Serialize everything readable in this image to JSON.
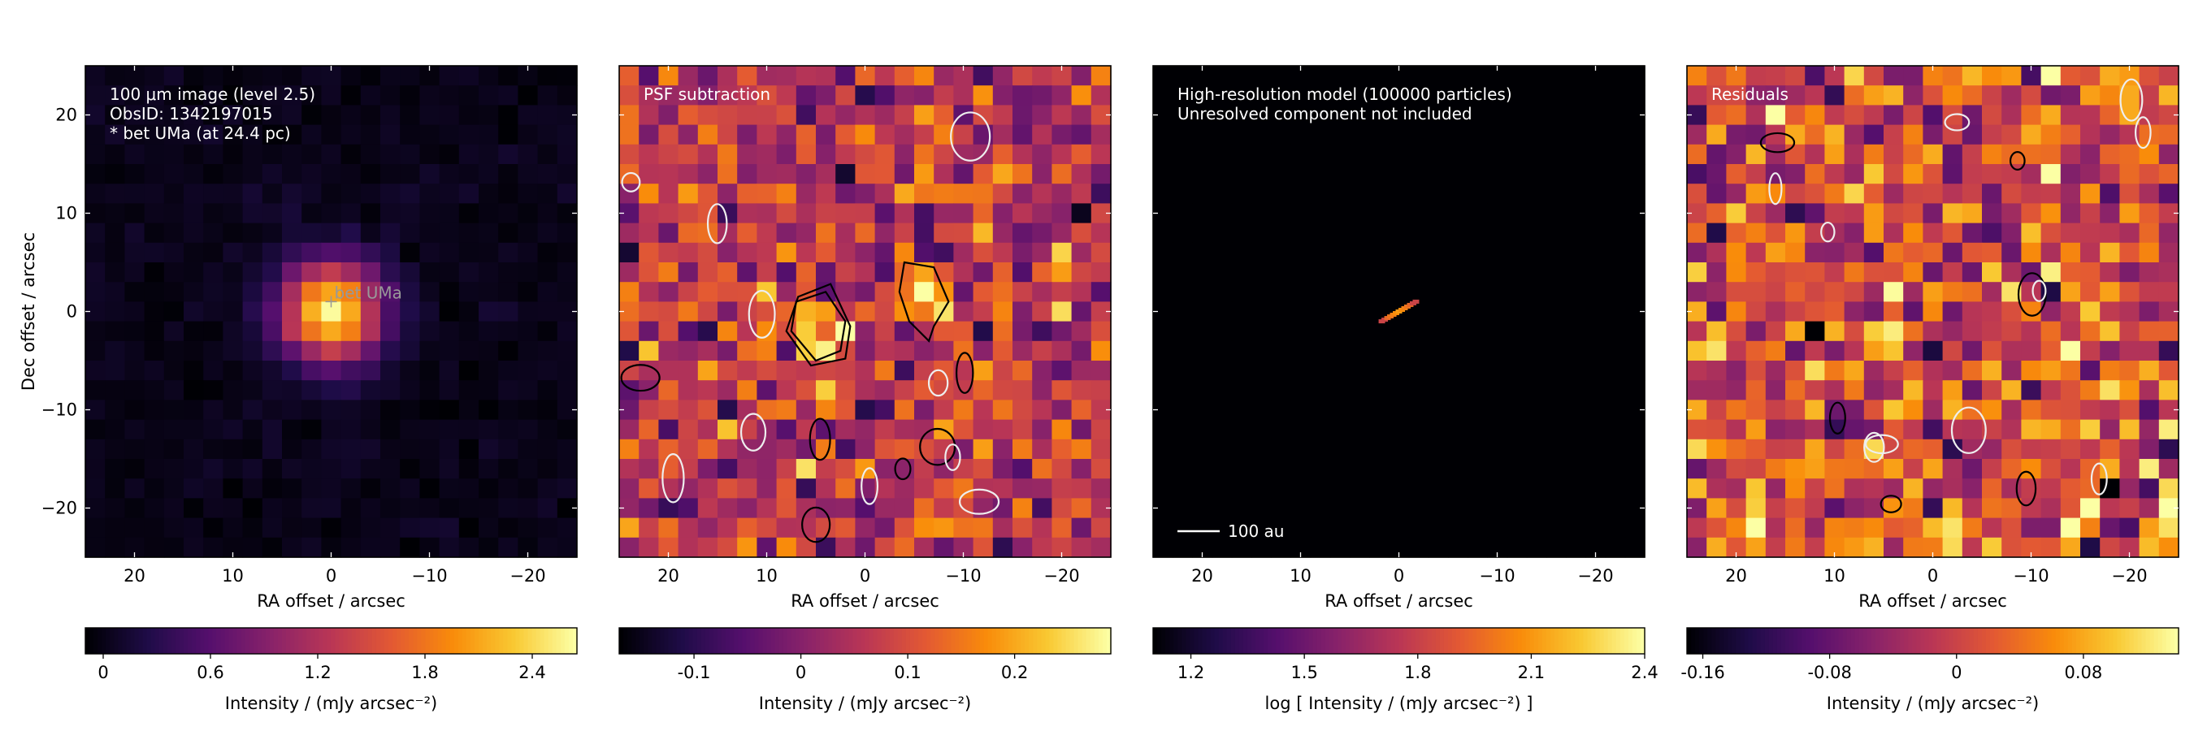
{
  "chart_data": [
    {
      "type": "heatmap",
      "annotation_lines": [
        "100 μm image (level 2.5)",
        "ObsID: 1342197015",
        "* bet UMa (at 24.4 pc)"
      ],
      "marker": {
        "label": "bet UMa",
        "x": 0,
        "y": 1
      },
      "xlabel": "RA offset / arcsec",
      "ylabel": "Dec offset / arcsec",
      "xlim": [
        25,
        -25
      ],
      "ylim": [
        -25,
        25
      ],
      "xticks": [
        20,
        10,
        0,
        -10,
        -20
      ],
      "xtick_labels": [
        "20",
        "10",
        "0",
        "−10",
        "−20"
      ],
      "yticks": [
        20,
        10,
        0,
        -10,
        -20
      ],
      "ytick_labels": [
        "20",
        "10",
        "0",
        "−10",
        "−20"
      ],
      "colormap": "inferno",
      "image_model": {
        "kind": "gaussian",
        "peak": 2.55,
        "center": [
          0,
          0
        ],
        "sigma": 3.5,
        "noise": 0.05
      },
      "colorbar": {
        "label": "Intensity / (mJy arcsec⁻²)",
        "range": [
          -0.1,
          2.65
        ],
        "ticks": [
          0,
          0.6,
          1.2,
          1.8,
          2.4
        ],
        "tick_labels": [
          "0",
          "0.6",
          "1.2",
          "1.8",
          "2.4"
        ]
      }
    },
    {
      "type": "heatmap",
      "annotation_lines": [
        "PSF subtraction"
      ],
      "xlabel": "RA offset / arcsec",
      "ylabel": "",
      "xlim": [
        25,
        -25
      ],
      "ylim": [
        -25,
        25
      ],
      "xticks": [
        20,
        10,
        0,
        -10,
        -20
      ],
      "xtick_labels": [
        "20",
        "10",
        "0",
        "−10",
        "−20"
      ],
      "yticks": [
        20,
        10,
        0,
        -10,
        -20
      ],
      "colormap": "inferno",
      "image_model": {
        "kind": "noise",
        "mean": 0.06,
        "std": 0.07,
        "blobs": [
          {
            "x": 5,
            "y": -1,
            "amp": 0.22,
            "sigma": 2.2
          },
          {
            "x": -6,
            "y": 2,
            "amp": 0.2,
            "sigma": 2.0
          }
        ]
      },
      "colorbar": {
        "label": "Intensity / (mJy arcsec⁻²)",
        "range": [
          -0.17,
          0.29
        ],
        "ticks": [
          -0.1,
          0,
          0.1,
          0.2
        ],
        "tick_labels": [
          "-0.1",
          "0",
          "0.1",
          "0.2"
        ]
      }
    },
    {
      "type": "heatmap",
      "annotation_lines": [
        "High-resolution model (100000 particles)",
        "Unresolved component not included"
      ],
      "scalebar_label": "100 au",
      "xlabel": "RA offset / arcsec",
      "ylabel": "",
      "xlim": [
        25,
        -25
      ],
      "ylim": [
        -25,
        25
      ],
      "xticks": [
        20,
        10,
        0,
        -10,
        -20
      ],
      "xtick_labels": [
        "20",
        "10",
        "0",
        "−10",
        "−20"
      ],
      "yticks": [
        20,
        10,
        0,
        -10,
        -20
      ],
      "colormap": "inferno",
      "image_model": {
        "kind": "disk",
        "center": [
          0,
          0
        ],
        "length": 4,
        "position_angle_deg": 30
      },
      "colorbar": {
        "label": "log [ Intensity / (mJy arcsec⁻²) ]",
        "range": [
          1.1,
          2.4
        ],
        "ticks": [
          1.2,
          1.5,
          1.8,
          2.1,
          2.4
        ],
        "tick_labels": [
          "1.2",
          "1.5",
          "1.8",
          "2.1",
          "2.4"
        ]
      }
    },
    {
      "type": "heatmap",
      "annotation_lines": [
        "Residuals"
      ],
      "xlabel": "RA offset / arcsec",
      "ylabel": "",
      "xlim": [
        25,
        -25
      ],
      "ylim": [
        -25,
        25
      ],
      "xticks": [
        20,
        10,
        0,
        -10,
        -20
      ],
      "xtick_labels": [
        "20",
        "10",
        "0",
        "−10",
        "−20"
      ],
      "yticks": [
        20,
        10,
        0,
        -10,
        -20
      ],
      "colormap": "inferno",
      "image_model": {
        "kind": "noise",
        "mean": 0.01,
        "std": 0.06,
        "blobs": []
      },
      "colorbar": {
        "label": "Intensity / (mJy arcsec⁻²)",
        "range": [
          -0.17,
          0.14
        ],
        "ticks": [
          -0.16,
          -0.08,
          0,
          0.08
        ],
        "tick_labels": [
          "-0.16",
          "-0.08",
          "0",
          "0.08"
        ]
      }
    }
  ]
}
